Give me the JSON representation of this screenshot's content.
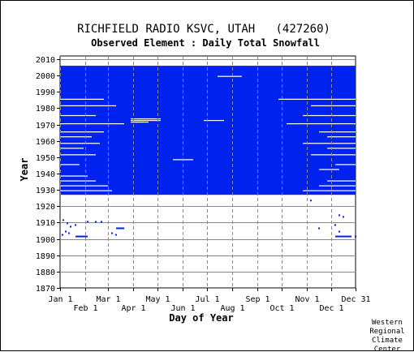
{
  "chart_data": {
    "type": "heatmap",
    "title": "RICHFIELD RADIO KSVC, UTAH   (427260)",
    "subtitle": "Observed Element : Daily Total Snowfall",
    "xlabel": "Day of Year",
    "ylabel": "Year",
    "credit": [
      "Western",
      "Regional",
      "Climate",
      "Center"
    ],
    "x_ticks": [
      {
        "label": "Jan 1",
        "day": 1,
        "row": 1
      },
      {
        "label": "Feb 1",
        "day": 32,
        "row": 2
      },
      {
        "label": "Mar 1",
        "day": 60,
        "row": 1
      },
      {
        "label": "Apr 1",
        "day": 91,
        "row": 2
      },
      {
        "label": "May 1",
        "day": 121,
        "row": 1
      },
      {
        "label": "Jun 1",
        "day": 152,
        "row": 2
      },
      {
        "label": "Jul 1",
        "day": 182,
        "row": 1
      },
      {
        "label": "Aug 1",
        "day": 213,
        "row": 2
      },
      {
        "label": "Sep 1",
        "day": 244,
        "row": 1
      },
      {
        "label": "Oct 1",
        "day": 274,
        "row": 2
      },
      {
        "label": "Nov 1",
        "day": 305,
        "row": 1
      },
      {
        "label": "Dec 1",
        "day": 335,
        "row": 2
      },
      {
        "label": "Dec 31",
        "day": 365,
        "row": 1
      }
    ],
    "y_ticks": [
      "1870",
      "1880",
      "1890",
      "1900",
      "1910",
      "1920",
      "1930",
      "1940",
      "1950",
      "1960",
      "1970",
      "1980",
      "1990",
      "2000",
      "2010"
    ],
    "xlim": [
      1,
      365
    ],
    "ylim": [
      1870,
      2012
    ],
    "colors": {
      "observed": "#0022ee",
      "grid": "#888888"
    },
    "observed_blocks": [
      {
        "years": [
          1927,
          2005
        ],
        "days": [
          1,
          365
        ]
      }
    ],
    "missing_gaps": [
      {
        "year": 1999,
        "days": [
          195,
          225
        ]
      },
      {
        "year": 1985,
        "days": [
          1,
          55
        ]
      },
      {
        "year": 1985,
        "days": [
          270,
          365
        ]
      },
      {
        "year": 1981,
        "days": [
          1,
          70
        ]
      },
      {
        "year": 1981,
        "days": [
          310,
          365
        ]
      },
      {
        "year": 1975,
        "days": [
          1,
          45
        ]
      },
      {
        "year": 1975,
        "days": [
          300,
          365
        ]
      },
      {
        "year": 1973,
        "days": [
          88,
          125
        ]
      },
      {
        "year": 1972,
        "days": [
          88,
          125
        ]
      },
      {
        "year": 1971,
        "days": [
          88,
          110
        ]
      },
      {
        "year": 1972,
        "days": [
          178,
          203
        ]
      },
      {
        "year": 1970,
        "days": [
          1,
          80
        ]
      },
      {
        "year": 1970,
        "days": [
          280,
          365
        ]
      },
      {
        "year": 1965,
        "days": [
          1,
          55
        ]
      },
      {
        "year": 1965,
        "days": [
          320,
          365
        ]
      },
      {
        "year": 1962,
        "days": [
          1,
          40
        ]
      },
      {
        "year": 1962,
        "days": [
          330,
          365
        ]
      },
      {
        "year": 1958,
        "days": [
          1,
          50
        ]
      },
      {
        "year": 1958,
        "days": [
          300,
          365
        ]
      },
      {
        "year": 1955,
        "days": [
          1,
          30
        ]
      },
      {
        "year": 1955,
        "days": [
          330,
          365
        ]
      },
      {
        "year": 1951,
        "days": [
          1,
          45
        ]
      },
      {
        "year": 1951,
        "days": [
          310,
          365
        ]
      },
      {
        "year": 1948,
        "days": [
          140,
          165
        ]
      },
      {
        "year": 1945,
        "days": [
          1,
          25
        ]
      },
      {
        "year": 1945,
        "days": [
          340,
          365
        ]
      },
      {
        "year": 1942,
        "days": [
          320,
          345
        ]
      },
      {
        "year": 1938,
        "days": [
          1,
          35
        ]
      },
      {
        "year": 1935,
        "days": [
          1,
          45
        ]
      },
      {
        "year": 1935,
        "days": [
          330,
          365
        ]
      },
      {
        "year": 1932,
        "days": [
          1,
          60
        ]
      },
      {
        "year": 1932,
        "days": [
          320,
          365
        ]
      },
      {
        "year": 1929,
        "days": [
          1,
          65
        ]
      },
      {
        "year": 1929,
        "days": [
          300,
          365
        ]
      }
    ],
    "observed_points": [
      {
        "year": 1923,
        "day": 310
      },
      {
        "year": 1914,
        "day": 345
      },
      {
        "year": 1913,
        "day": 350
      },
      {
        "year": 1911,
        "day": 5
      },
      {
        "year": 1910,
        "day": 35
      },
      {
        "year": 1910,
        "day": 45
      },
      {
        "year": 1910,
        "day": 52
      },
      {
        "year": 1909,
        "day": 10
      },
      {
        "year": 1908,
        "day": 20
      },
      {
        "year": 1908,
        "day": 340
      },
      {
        "year": 1907,
        "day": 14
      },
      {
        "year": 1906,
        "day": 72
      },
      {
        "year": 1906,
        "day": 76
      },
      {
        "year": 1906,
        "day": 320
      },
      {
        "year": 1904,
        "day": 8
      },
      {
        "year": 1904,
        "day": 345
      },
      {
        "year": 1903,
        "day": 12
      },
      {
        "year": 1903,
        "day": 65
      },
      {
        "year": 1902,
        "day": 4
      },
      {
        "year": 1902,
        "day": 70
      },
      {
        "year": 1901,
        "day": 365
      }
    ],
    "observed_runs": [
      {
        "year": 1906,
        "days": [
          70,
          80
        ]
      },
      {
        "year": 1901,
        "days": [
          20,
          35
        ]
      },
      {
        "year": 1901,
        "days": [
          340,
          360
        ]
      }
    ]
  }
}
